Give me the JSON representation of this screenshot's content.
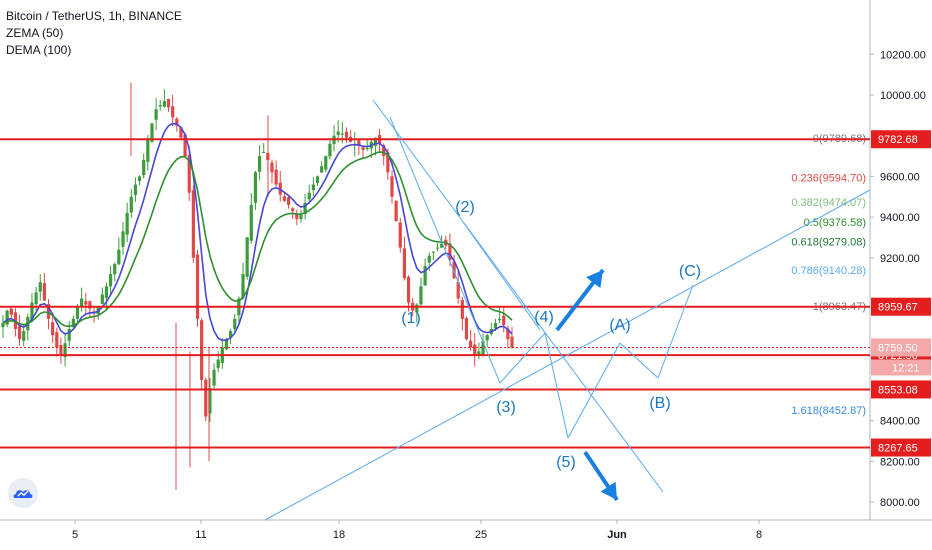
{
  "legend": {
    "symbol": "Bitcoin / TetherUS, 1h, BINANCE",
    "ind1": "ZEMA (50)",
    "ind2": "DEMA (100)"
  },
  "colors": {
    "level_red": "#e41e1e",
    "fib_blue": "#5aaaf0",
    "fib_green": "#3c9b3c",
    "fib_red": "#e04848",
    "candle_up": "#3c9b3c",
    "candle_down": "#e04848",
    "ma_blue": "#4646d8",
    "ma_green": "#2f8f2f",
    "annotation_blue": "#1a78c2",
    "arrow_blue": "#1a80e0"
  },
  "chart_data": {
    "type": "candlestick",
    "x_ticks": [
      "5",
      "11",
      "18",
      "25",
      "Jun",
      "8"
    ],
    "y_ticks": [
      "10200.00",
      "10000.00",
      "9600.00",
      "9400.00",
      "9200.00",
      "8400.00",
      "8200.00",
      "8000.00"
    ],
    "ylim": [
      7900,
      10280
    ],
    "price_levels": [
      {
        "label": "9782.68",
        "value": 9782.68
      },
      {
        "label": "8959.67",
        "value": 8959.67
      },
      {
        "label": "8721.56",
        "value": 8721.56
      },
      {
        "label": "8553.08",
        "value": 8553.08
      },
      {
        "label": "8267.65",
        "value": 8267.65
      }
    ],
    "current_price": {
      "label": "8759.50",
      "value": 8759.5,
      "countdown": "12:21"
    },
    "fib_levels": [
      {
        "ratio": "0",
        "text": "0(9789.68)",
        "value": 9789.68,
        "color": "#787b86"
      },
      {
        "ratio": "0.236",
        "text": "0.236(9594.70)",
        "value": 9594.7,
        "color": "#e04848"
      },
      {
        "ratio": "0.382",
        "text": "0.382(9474.07)",
        "value": 9474.07,
        "color": "#7fbf7f"
      },
      {
        "ratio": "0.5",
        "text": "0.5(9376.58)",
        "value": 9376.58,
        "color": "#2f8f2f"
      },
      {
        "ratio": "0.618",
        "text": "0.618(9279.08)",
        "value": 9279.08,
        "color": "#1f7a3a"
      },
      {
        "ratio": "0.786",
        "text": "0.786(9140.28)",
        "value": 9140.28,
        "color": "#5aaaf0"
      },
      {
        "ratio": "1",
        "text": "1(8963.47)",
        "value": 8963.47,
        "color": "#787b86"
      },
      {
        "ratio": "1.618",
        "text": "1.618(8452.87)",
        "value": 8452.87,
        "color": "#3a8ad8"
      }
    ],
    "wave_labels": [
      "(1)",
      "(2)",
      "(3)",
      "(4)",
      "(5)",
      "(A)",
      "(B)",
      "(C)"
    ],
    "price_path": [
      8880,
      8940,
      8920,
      8850,
      8800,
      8840,
      8910,
      8980,
      9030,
      9080,
      8990,
      8900,
      8820,
      8760,
      8720,
      8780,
      8850,
      8900,
      8960,
      9000,
      8970,
      8950,
      8930,
      8960,
      9020,
      9060,
      9120,
      9170,
      9240,
      9330,
      9420,
      9500,
      9560,
      9600,
      9680,
      9780,
      9860,
      9930,
      9950,
      9970,
      9940,
      9890,
      9850,
      9790,
      9700,
      9520,
      9200,
      8900,
      8600,
      8420,
      8560,
      8650,
      8700,
      8760,
      8800,
      8840,
      8900,
      9000,
      9120,
      9300,
      9460,
      9620,
      9700,
      9720,
      9680,
      9620,
      9560,
      9510,
      9480,
      9460,
      9430,
      9390,
      9410,
      9470,
      9520,
      9560,
      9600,
      9650,
      9700,
      9760,
      9800,
      9820,
      9810,
      9790,
      9770,
      9760,
      9750,
      9730,
      9740,
      9770,
      9790,
      9760,
      9700,
      9620,
      9500,
      9380,
      9250,
      9100,
      8980,
      8940,
      8970,
      9060,
      9160,
      9210,
      9230,
      9250,
      9270,
      9260,
      9190,
      9100,
      9000,
      8900,
      8800,
      8760,
      8720,
      8740,
      8790,
      8820,
      8850,
      8880,
      8900,
      8870,
      8800,
      8760
    ]
  }
}
